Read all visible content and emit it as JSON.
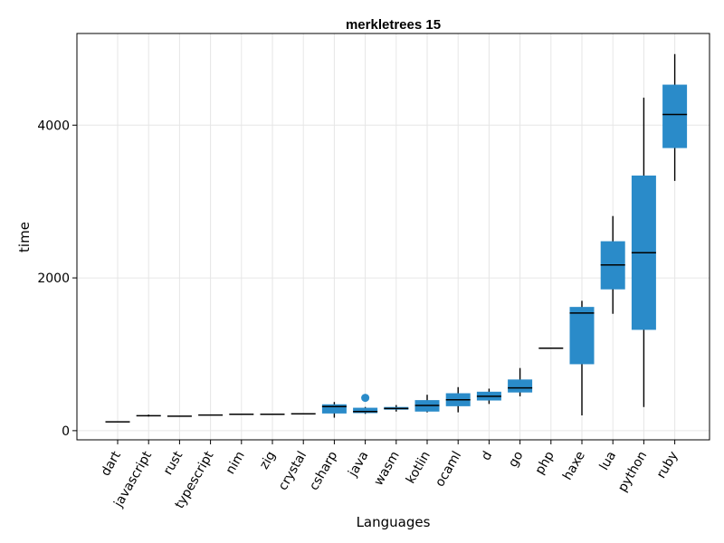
{
  "chart_data": {
    "type": "box",
    "title": "merkletrees 15",
    "xlabel": "Languages",
    "ylabel": "time",
    "ylim": [
      -120,
      5200
    ],
    "yticks": [
      0,
      2000,
      4000
    ],
    "grid": true,
    "box_color": "#2a8bc9",
    "categories": [
      "dart",
      "javascript",
      "rust",
      "typescript",
      "nim",
      "zig",
      "crystal",
      "csharp",
      "java",
      "wasm",
      "kotlin",
      "ocaml",
      "d",
      "go",
      "php",
      "haxe",
      "lua",
      "python",
      "ruby"
    ],
    "series": [
      {
        "category": "dart",
        "min": 115,
        "q1": 115,
        "median": 115,
        "q3": 115,
        "max": 115,
        "outliers": []
      },
      {
        "category": "javascript",
        "min": 185,
        "q1": 190,
        "median": 195,
        "q3": 200,
        "max": 210,
        "outliers": []
      },
      {
        "category": "rust",
        "min": 190,
        "q1": 190,
        "median": 190,
        "q3": 190,
        "max": 190,
        "outliers": []
      },
      {
        "category": "typescript",
        "min": 205,
        "q1": 205,
        "median": 205,
        "q3": 205,
        "max": 205,
        "outliers": []
      },
      {
        "category": "nim",
        "min": 215,
        "q1": 215,
        "median": 215,
        "q3": 215,
        "max": 215,
        "outliers": []
      },
      {
        "category": "zig",
        "min": 215,
        "q1": 215,
        "median": 215,
        "q3": 215,
        "max": 215,
        "outliers": []
      },
      {
        "category": "crystal",
        "min": 220,
        "q1": 220,
        "median": 220,
        "q3": 220,
        "max": 220,
        "outliers": []
      },
      {
        "category": "csharp",
        "min": 170,
        "q1": 225,
        "median": 315,
        "q3": 345,
        "max": 375,
        "outliers": []
      },
      {
        "category": "java",
        "min": 220,
        "q1": 230,
        "median": 250,
        "q3": 300,
        "max": 310,
        "outliers": [
          430
        ]
      },
      {
        "category": "wasm",
        "min": 250,
        "q1": 275,
        "median": 290,
        "q3": 310,
        "max": 335,
        "outliers": []
      },
      {
        "category": "kotlin",
        "min": 240,
        "q1": 250,
        "median": 330,
        "q3": 400,
        "max": 470,
        "outliers": []
      },
      {
        "category": "ocaml",
        "min": 240,
        "q1": 320,
        "median": 405,
        "q3": 490,
        "max": 570,
        "outliers": []
      },
      {
        "category": "d",
        "min": 350,
        "q1": 395,
        "median": 450,
        "q3": 510,
        "max": 550,
        "outliers": []
      },
      {
        "category": "go",
        "min": 450,
        "q1": 500,
        "median": 560,
        "q3": 670,
        "max": 820,
        "outliers": []
      },
      {
        "category": "php",
        "min": 1080,
        "q1": 1080,
        "median": 1080,
        "q3": 1080,
        "max": 1080,
        "outliers": []
      },
      {
        "category": "haxe",
        "min": 200,
        "q1": 870,
        "median": 1540,
        "q3": 1620,
        "max": 1700,
        "outliers": []
      },
      {
        "category": "lua",
        "min": 1530,
        "q1": 1850,
        "median": 2170,
        "q3": 2480,
        "max": 2810,
        "outliers": []
      },
      {
        "category": "python",
        "min": 310,
        "q1": 1320,
        "median": 2330,
        "q3": 3340,
        "max": 4360,
        "outliers": []
      },
      {
        "category": "ruby",
        "min": 3270,
        "q1": 3700,
        "median": 4140,
        "q3": 4530,
        "max": 4930,
        "outliers": []
      }
    ]
  }
}
